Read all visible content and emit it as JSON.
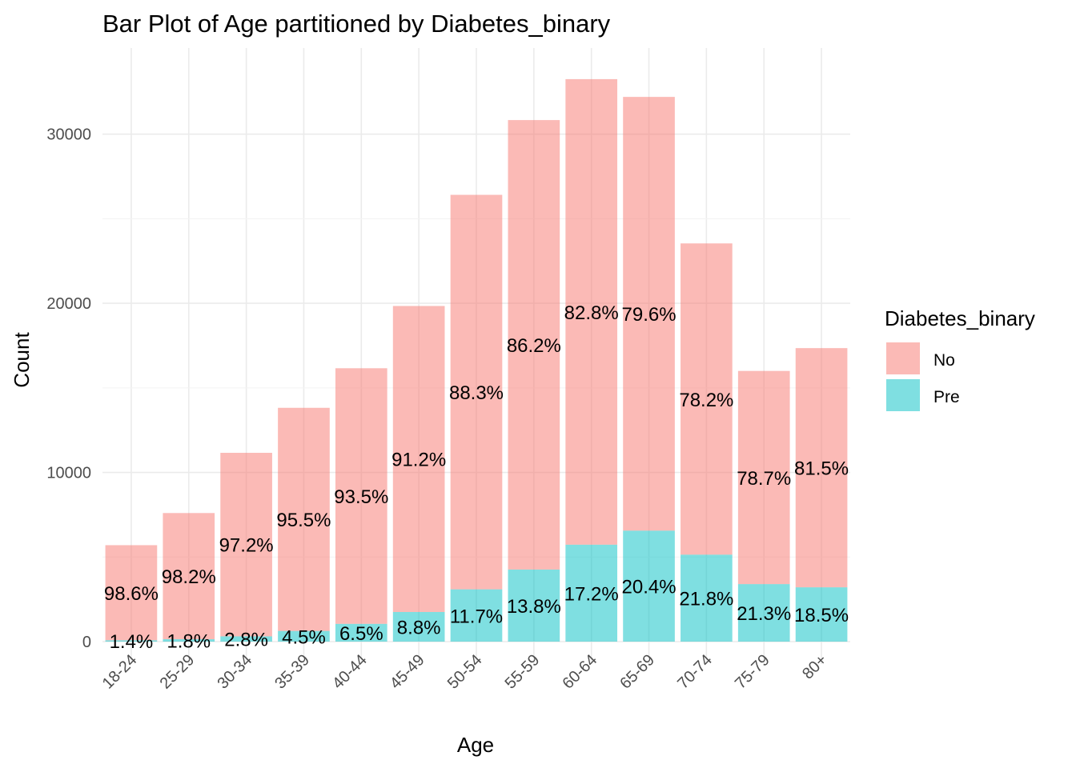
{
  "chart_data": {
    "type": "bar",
    "stacked": true,
    "title": "Bar Plot of Age partitioned by Diabetes_binary",
    "xlabel": "Age",
    "ylabel": "Count",
    "ylim": [
      0,
      34000
    ],
    "yticks": [
      0,
      10000,
      20000,
      30000
    ],
    "y_tick_labels": [
      "0",
      "10000",
      "20000",
      "30000"
    ],
    "grid": true,
    "categories": [
      "18-24",
      "25-29",
      "30-34",
      "35-39",
      "40-44",
      "45-49",
      "50-54",
      "55-59",
      "60-64",
      "65-69",
      "70-74",
      "75-79",
      "80+"
    ],
    "series": [
      {
        "name": "Pre",
        "color": "#00BFC4",
        "values": [
          80,
          140,
          310,
          630,
          1050,
          1750,
          3090,
          4260,
          5730,
          6560,
          5140,
          3400,
          3210
        ],
        "labels": [
          "1.4%",
          "1.8%",
          "2.8%",
          "4.5%",
          "6.5%",
          "8.8%",
          "11.7%",
          "13.8%",
          "17.2%",
          "20.4%",
          "21.8%",
          "21.3%",
          "18.5%"
        ]
      },
      {
        "name": "No",
        "color": "#F8766D",
        "values": [
          5620,
          7460,
          10850,
          13190,
          15110,
          18090,
          23320,
          26570,
          27520,
          25640,
          18400,
          12600,
          14140
        ],
        "labels": [
          "98.6%",
          "98.2%",
          "97.2%",
          "95.5%",
          "93.5%",
          "91.2%",
          "88.3%",
          "86.2%",
          "82.8%",
          "79.6%",
          "78.2%",
          "78.7%",
          "81.5%"
        ]
      }
    ],
    "legend": {
      "title": "Diabetes_binary",
      "position": "right",
      "entries": [
        "No",
        "Pre"
      ]
    }
  }
}
